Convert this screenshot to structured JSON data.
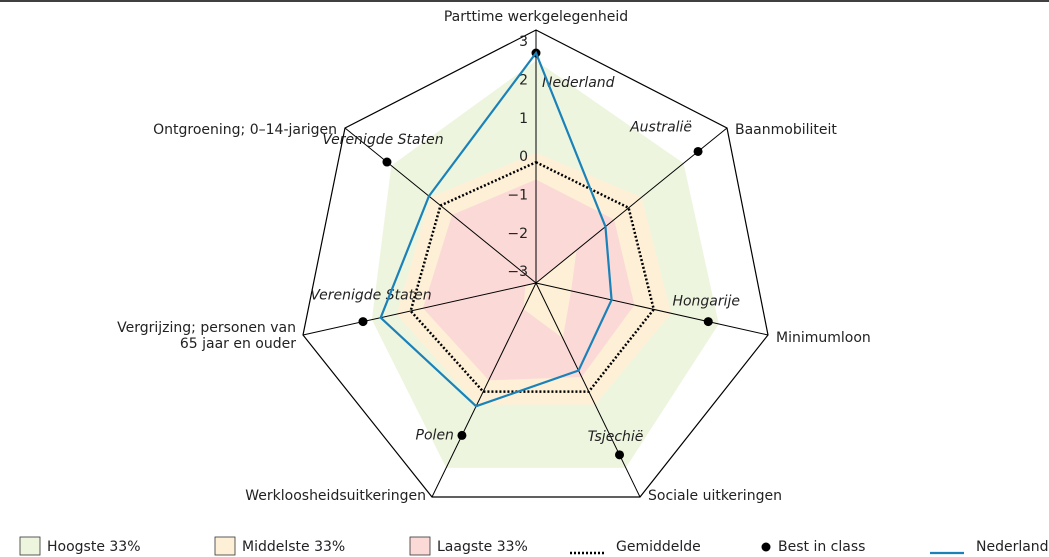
{
  "chart_data": {
    "type": "radar",
    "categories": [
      "Parttime werkgelegenheid",
      "Baanmobiliteit",
      "Minimumloon",
      "Sociale uitkeringen",
      "Werkloosheidsuitkeringen",
      "Vergrijzing; personen van 65 jaar en ouder",
      "Ontgroening; 0–14-jarigen"
    ],
    "rlim": [
      -3.1,
      3.5
    ],
    "rticks": [
      3,
      2,
      1,
      0,
      {
        "value": -1,
        "label": "−1"
      },
      {
        "value": -2,
        "label": "−2"
      },
      {
        "value": -3,
        "label": "−3"
      }
    ],
    "bands": [
      {
        "name": "Hoogste 33%",
        "color": "#eef5df",
        "values": [
          2.7,
          2.0,
          2.1,
          2.6,
          2.6,
          1.55,
          1.9
        ]
      },
      {
        "name": "Middelste 33%",
        "color": "#fdf0d6",
        "values": [
          0.3,
          0.55,
          0.75,
          0.65,
          0.65,
          0.85,
          0.55
        ]
      },
      {
        "name": "Laagste 33%",
        "color": "#fbd9d7",
        "values": [
          -0.4,
          -0.4,
          -0.3,
          -0.2,
          -0.1,
          0.1,
          -0.2
        ],
        "low": [
          -3.1,
          -1.7,
          -2.1,
          -1.4,
          -2.3,
          -2.8,
          -3.1
        ]
      }
    ],
    "series": [
      {
        "name": "Gemiddelde",
        "color": "#000000",
        "style": "dotted",
        "values": [
          0.05,
          0.1,
          0.25,
          0.25,
          0.25,
          0.45,
          0.2
        ]
      },
      {
        "name": "Best in class",
        "color": "#000000",
        "style": "points",
        "values": [
          2.9,
          2.5,
          1.8,
          2.2,
          1.6,
          1.8,
          2.05
        ],
        "labels": [
          "Nederland",
          "Australië",
          "Hongarije",
          "Tsjechië",
          "Polen",
          "Verenigde Staten",
          "Verenigde Staten"
        ]
      },
      {
        "name": "Nederland",
        "color": "#1a82b8",
        "style": "line",
        "values": [
          2.9,
          -0.7,
          -0.95,
          -0.4,
          0.7,
          1.3,
          0.6
        ]
      }
    ]
  }
}
